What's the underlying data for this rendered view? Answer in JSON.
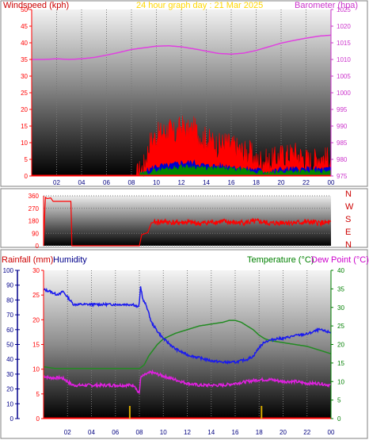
{
  "colors": {
    "background": "#ffffff",
    "frame": "#808080",
    "axis": "#ff0000",
    "wind_label": "#cc0000",
    "title": "#ffd700",
    "barometer": "#cc33cc",
    "barometer_line": "#e040e0",
    "wind_series": "#ff0000",
    "gust_series": "#0000cc",
    "wind_avg_series": "#008800",
    "direction": "#ff0000",
    "direction_labels": "#cc0000",
    "rainfall": "#cc0000",
    "humidity": "#00008b",
    "humidity_line": "#1a1aee",
    "temperature": "#008000",
    "temperature_line": "#228b22",
    "dewpoint": "#cc00cc",
    "dewpoint_line": "#e020e0",
    "rain_bars": "#d4a800",
    "tick_text_top": "#cc33cc"
  },
  "chart_data": [
    {
      "type": "area",
      "title": "24 hour graph day : 21 Mar 2025",
      "left_label": "Windspeed (kph)",
      "right_label": "Barometer (hpa)",
      "x_tick_labels": [
        "02",
        "04",
        "06",
        "08",
        "10",
        "12",
        "14",
        "16",
        "18",
        "20",
        "22",
        "00"
      ],
      "x_hours": [
        2,
        4,
        6,
        8,
        10,
        12,
        14,
        16,
        18,
        20,
        22,
        24
      ],
      "x_range": [
        0,
        24
      ],
      "y_left_range": [
        0,
        50
      ],
      "y_left_ticks": [
        0,
        5,
        10,
        15,
        20,
        25,
        30,
        35,
        40,
        45,
        50
      ],
      "y_right_range": [
        975,
        1025
      ],
      "y_right_ticks": [
        975,
        980,
        985,
        990,
        995,
        1000,
        1005,
        1010,
        1015,
        1020,
        1025
      ],
      "grid": true,
      "series": [
        {
          "key": "windspeed_gust",
          "x": [
            0,
            8.4,
            9,
            9.5,
            10,
            10.5,
            11,
            11.5,
            12,
            12.5,
            13,
            13.5,
            14,
            14.5,
            15,
            15.5,
            16,
            16.5,
            17,
            17.5,
            18,
            18.5,
            19,
            19.5,
            20,
            20.5,
            21,
            21.5,
            22,
            22.5,
            23,
            23.5,
            24
          ],
          "values": [
            0,
            0,
            3,
            10,
            12,
            13,
            14,
            12,
            15,
            13,
            14,
            12,
            11,
            10,
            9,
            10,
            9,
            8,
            7,
            7,
            4,
            5,
            4,
            5,
            6,
            6,
            7,
            6,
            5,
            4,
            6,
            5,
            5
          ]
        },
        {
          "key": "windspeed",
          "x": [
            0,
            8.4,
            9,
            10,
            11,
            12,
            13,
            14,
            15,
            16,
            17,
            18,
            19,
            20,
            21,
            22,
            23,
            24
          ],
          "values": [
            0,
            0,
            1,
            3,
            3,
            4,
            4,
            3,
            3,
            3,
            2,
            2,
            1,
            2,
            2,
            2,
            2,
            2
          ]
        },
        {
          "key": "windspeed_avg",
          "x": [
            0,
            8.4,
            9,
            10,
            11,
            12,
            13,
            14,
            15,
            16,
            17,
            18,
            19,
            20,
            21,
            22,
            23,
            24
          ],
          "values": [
            0,
            0,
            0.5,
            1.5,
            2,
            2.5,
            2.5,
            2,
            2,
            1.8,
            1.5,
            1,
            0.5,
            1,
            1.2,
            1,
            1,
            1
          ]
        },
        {
          "key": "barometer",
          "x": [
            0,
            1,
            2,
            3,
            4,
            5,
            6,
            7,
            8,
            9,
            10,
            11,
            12,
            13,
            14,
            15,
            16,
            17,
            18,
            19,
            20,
            21,
            22,
            23,
            24
          ],
          "values": [
            1010.0,
            1010.0,
            1010.2,
            1010.0,
            1010.2,
            1010.6,
            1011.3,
            1012.1,
            1013.0,
            1013.5,
            1014.0,
            1014.1,
            1013.8,
            1013.2,
            1012.5,
            1011.8,
            1011.6,
            1011.9,
            1012.7,
            1013.8,
            1014.9,
            1015.7,
            1016.4,
            1017.0,
            1017.3
          ]
        }
      ]
    },
    {
      "type": "line",
      "y_range": [
        0,
        360
      ],
      "y_ticks": [
        0,
        90,
        180,
        270,
        360
      ],
      "y_tick_labels": [
        "0",
        "90",
        "180",
        "270",
        "360"
      ],
      "x_range": [
        0,
        24
      ],
      "direction_labels": [
        "N",
        "W",
        "S",
        "E",
        "N"
      ],
      "grid": true,
      "series": [
        {
          "key": "wind_direction",
          "x": [
            0,
            0.15,
            0.3,
            0.6,
            0.8,
            2.3,
            2.35,
            8.0,
            8.2,
            8.7,
            9.0,
            10,
            11,
            12,
            13,
            14,
            15,
            16,
            17,
            18,
            19,
            20,
            21,
            22,
            23,
            24
          ],
          "values": [
            0,
            350,
            340,
            345,
            320,
            320,
            0,
            0,
            80,
            95,
            165,
            175,
            165,
            170,
            160,
            170,
            175,
            165,
            170,
            175,
            160,
            170,
            165,
            170,
            165,
            165
          ]
        }
      ]
    },
    {
      "type": "line",
      "left_label": "Rainfall (mm)",
      "left_label2": "Humidity",
      "right_label": "Temperature (°C)",
      "right_label2": "Dew Point (°C)",
      "x_tick_labels": [
        "02",
        "04",
        "06",
        "08",
        "10",
        "12",
        "14",
        "16",
        "18",
        "20",
        "22",
        "00"
      ],
      "x_hours": [
        2,
        4,
        6,
        8,
        10,
        12,
        14,
        16,
        18,
        20,
        22,
        24
      ],
      "x_range": [
        0,
        24
      ],
      "rain_range": [
        0,
        30
      ],
      "rain_ticks": [
        0,
        5,
        10,
        15,
        20,
        25,
        30
      ],
      "humidity_range": [
        0,
        100
      ],
      "humidity_ticks": [
        0,
        10,
        20,
        30,
        40,
        50,
        60,
        70,
        80,
        90,
        100
      ],
      "temp_range": [
        0,
        40
      ],
      "temp_ticks": [
        0,
        5,
        10,
        15,
        20,
        25,
        30,
        35,
        40
      ],
      "grid": true,
      "series": [
        {
          "key": "humidity",
          "x": [
            0,
            0.5,
            1,
            1.4,
            1.6,
            2.2,
            2.5,
            3,
            4,
            5,
            6,
            7,
            7.5,
            7.9,
            8.0,
            8.1,
            8.2,
            8.3,
            8.6,
            9,
            9.5,
            10,
            11,
            12,
            13,
            14,
            15,
            16,
            17,
            17.5,
            18,
            18.5,
            19,
            19.5,
            20,
            21,
            22,
            23,
            23.5,
            24
          ],
          "values": [
            87,
            86,
            84,
            84,
            86,
            80,
            77,
            77,
            77,
            77,
            77,
            77,
            77,
            75,
            78,
            89,
            85,
            80,
            76,
            65,
            59,
            54,
            47,
            43,
            41,
            39,
            38,
            38,
            40,
            42,
            48,
            52,
            53,
            54,
            54,
            56,
            57,
            60,
            59,
            58
          ]
        },
        {
          "key": "temperature",
          "x": [
            0,
            1,
            2,
            3,
            4,
            5,
            6,
            7,
            8,
            8.4,
            8.8,
            9.5,
            10,
            11,
            12,
            13,
            14,
            15,
            15.5,
            16,
            16.5,
            17,
            17.5,
            18,
            18.5,
            19,
            20,
            21,
            22,
            23,
            24
          ],
          "values": [
            14,
            13.5,
            13.5,
            13.5,
            13.5,
            13.5,
            13.5,
            13.5,
            13.5,
            14.5,
            17,
            20,
            21.5,
            23,
            24,
            25,
            25.5,
            26,
            26.5,
            26.5,
            26,
            25,
            24,
            22.5,
            21.5,
            21,
            20.5,
            20,
            19.5,
            18.5,
            17.5
          ]
        },
        {
          "key": "dewpoint",
          "x": [
            0,
            0.5,
            1,
            1.5,
            1.8,
            2.2,
            2.5,
            3,
            4,
            5,
            6,
            7,
            7.6,
            7.9,
            8.0,
            8.1,
            8.3,
            8.6,
            9,
            9.5,
            10,
            10.5,
            11,
            11.5,
            12,
            13,
            14,
            15,
            16,
            17,
            18,
            19,
            20,
            21,
            22,
            23,
            24
          ],
          "values": [
            11.5,
            11,
            11,
            11,
            10.5,
            9.5,
            9,
            9,
            9,
            9,
            9,
            9,
            9,
            7,
            7,
            11,
            11.5,
            12,
            12.5,
            12,
            11.5,
            11,
            10.5,
            10,
            9.5,
            9,
            9,
            9,
            9.5,
            10,
            10.5,
            10.5,
            10,
            10,
            9.5,
            9.5,
            9
          ]
        },
        {
          "key": "rainfall",
          "x": [
            0,
            24
          ],
          "values": [
            0,
            0
          ]
        },
        {
          "key": "rain_rate_ticks",
          "x": [
            7.2,
            18.2
          ],
          "values": [
            1.1,
            1.1
          ]
        }
      ]
    }
  ]
}
